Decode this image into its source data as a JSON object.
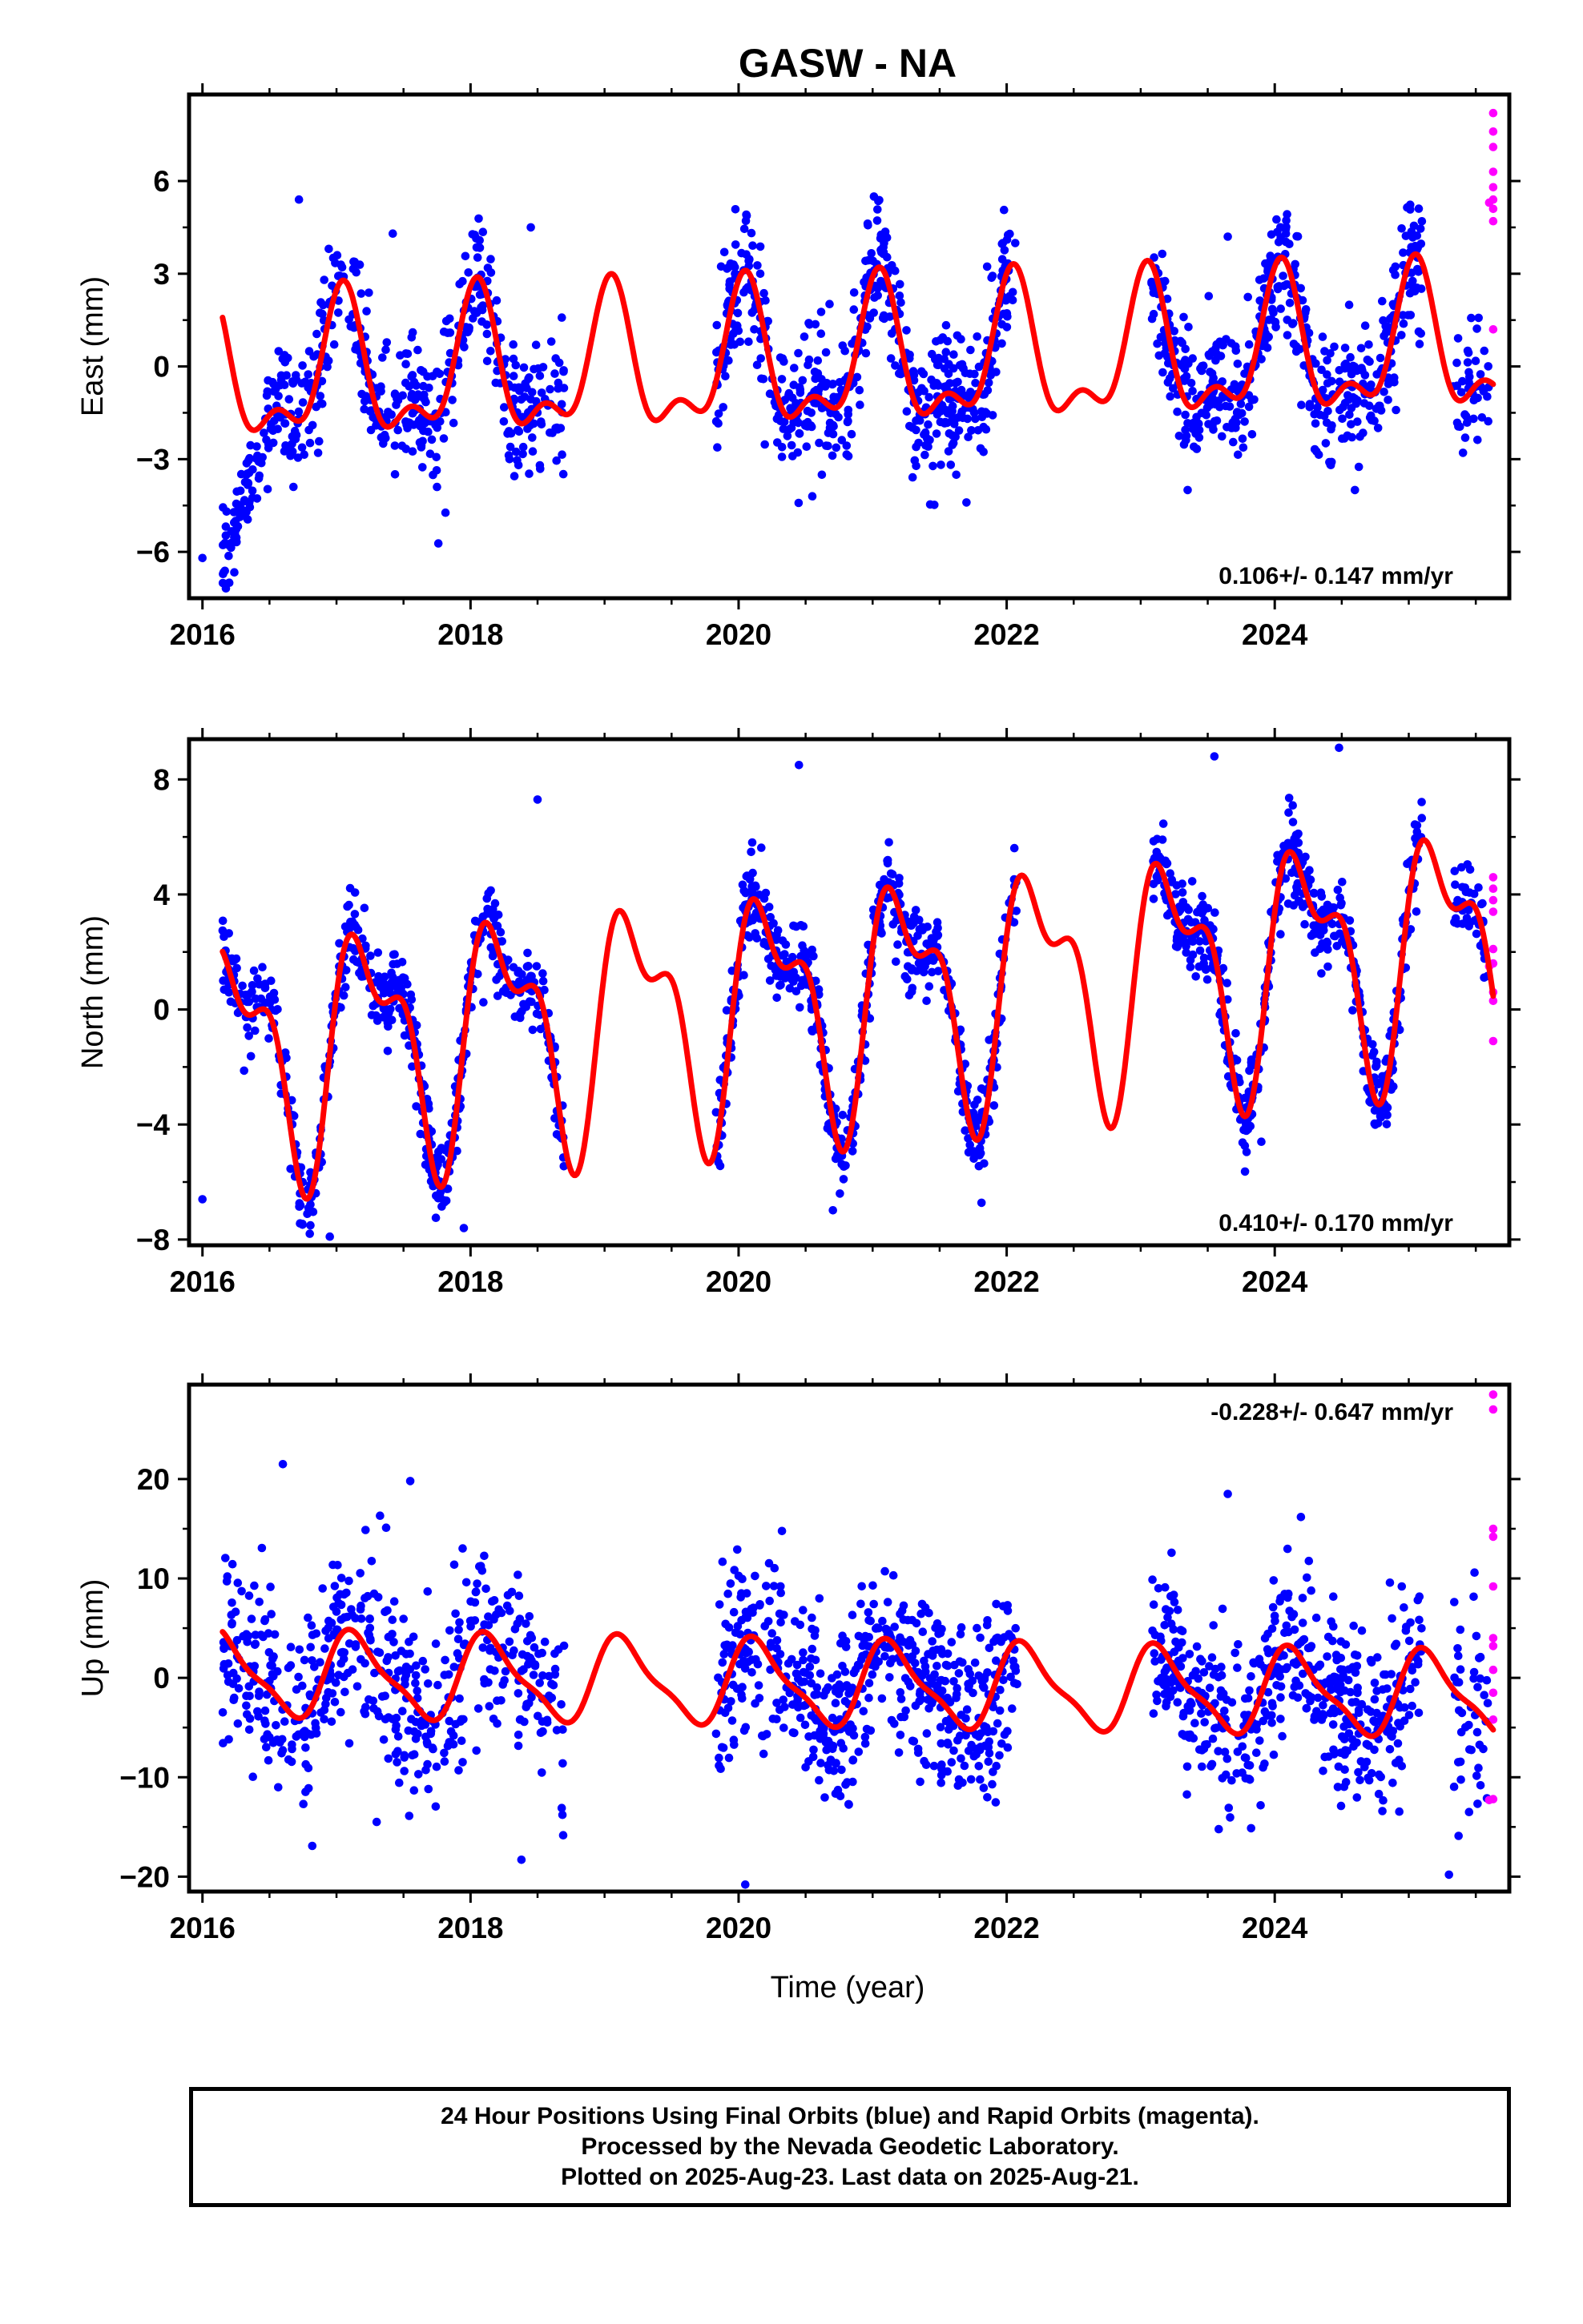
{
  "chart_data": {
    "title": "GASW - NA",
    "xlabel": "Time (year)",
    "x_ticks": [
      2016,
      2018,
      2020,
      2022,
      2024
    ],
    "x_tick_labels": [
      "2016",
      "2018",
      "2020",
      "2022",
      "2024"
    ],
    "xlim": [
      2015.9,
      2025.75
    ],
    "colors": {
      "final_orbits": "#0000ff",
      "rapid_orbits": "#ff00ff",
      "model": "#ff0000"
    },
    "panels": [
      {
        "type": "scatter",
        "ylabel": "East (mm)",
        "ylim": [
          -7.5,
          8.8
        ],
        "y_ticks": [
          -6,
          -3,
          0,
          3,
          6
        ],
        "y_tick_labels": [
          "−6",
          "−3",
          "0",
          "3",
          "6"
        ],
        "rate": "0.106+/- 0.147 mm/yr",
        "rate_position": "bottom-right",
        "noise_sd": 1.05,
        "outliers": [
          [
            2016.72,
            5.4
          ],
          [
            2017.42,
            4.3
          ],
          [
            2018.45,
            4.5
          ],
          [
            2023.65,
            4.2
          ],
          [
            2017.75,
            -3.9
          ],
          [
            2020.55,
            -4.2
          ],
          [
            2021.7,
            -4.4
          ],
          [
            2023.35,
            -4.0
          ],
          [
            2016.2,
            -7.0
          ],
          [
            2016.0,
            -6.2
          ]
        ],
        "segments": [
          {
            "x": [
              2016.15,
              2016.4
            ],
            "y": [
              -6.6,
              -3.2
            ],
            "noise": 0.7,
            "n": 60
          },
          {
            "x": [
              2016.4,
              2016.6
            ],
            "y": [
              -3.2,
              -0.5
            ],
            "noise": 0.8,
            "n": 40
          }
        ],
        "series": [
          {
            "name": "Final Orbits",
            "color": "#0000ff",
            "ranges": [
              [
                2016.6,
                2018.7,
                420
              ],
              [
                2019.83,
                2022.08,
                560
              ],
              [
                2023.08,
                2025.1,
                480
              ],
              [
                2025.33,
                2025.6,
                40
              ]
            ]
          },
          {
            "name": "Rapid Orbits",
            "color": "#ff00ff",
            "points": [
              [
                2025.63,
                8.2
              ],
              [
                2025.63,
                7.6
              ],
              [
                2025.63,
                7.1
              ],
              [
                2025.63,
                6.3
              ],
              [
                2025.63,
                5.8
              ],
              [
                2025.63,
                5.4
              ],
              [
                2025.63,
                5.1
              ],
              [
                2025.63,
                4.7
              ],
              [
                2025.63,
                1.2
              ],
              [
                2025.6,
                5.3
              ]
            ]
          }
        ],
        "model": {
          "name": "Model",
          "color": "#ff0000",
          "offset": 0.0,
          "trend_ref": 2020.0,
          "trend": 0.106,
          "annual": [
            0.55,
            2.0
          ],
          "semiannual": [
            0.65,
            0.8
          ],
          "steps": [
            [
              2016.15,
              -0.8
            ],
            [
              2017.2,
              0.0
            ],
            [
              2019.4,
              -0.7
            ],
            [
              2020.6,
              0.0
            ],
            [
              2022.2,
              -0.9
            ],
            [
              2023.3,
              0.0
            ]
          ]
        }
      },
      {
        "type": "scatter",
        "ylabel": "North (mm)",
        "ylim": [
          -8.2,
          9.4
        ],
        "y_ticks": [
          -8,
          -4,
          0,
          4,
          8
        ],
        "y_tick_labels": [
          "−8",
          "−4",
          "0",
          "4",
          "8"
        ],
        "rate": "0.410+/- 0.170 mm/yr",
        "rate_position": "bottom-right",
        "noise_sd": 0.75,
        "outliers": [
          [
            2018.5,
            7.3
          ],
          [
            2020.45,
            8.5
          ],
          [
            2023.55,
            8.8
          ],
          [
            2024.48,
            9.1
          ],
          [
            2016.95,
            -7.9
          ],
          [
            2017.95,
            -7.6
          ],
          [
            2023.9,
            -4.6
          ],
          [
            2016.0,
            -6.6
          ]
        ],
        "segments": [],
        "series": [
          {
            "name": "Final Orbits",
            "color": "#0000ff",
            "ranges": [
              [
                2016.15,
                2018.7,
                520
              ],
              [
                2019.83,
                2022.08,
                560
              ],
              [
                2023.08,
                2025.1,
                500
              ],
              [
                2025.33,
                2025.6,
                45
              ]
            ]
          },
          {
            "name": "Rapid Orbits",
            "color": "#ff00ff",
            "points": [
              [
                2025.63,
                4.6
              ],
              [
                2025.63,
                4.2
              ],
              [
                2025.63,
                3.8
              ],
              [
                2025.63,
                3.4
              ],
              [
                2025.63,
                2.1
              ],
              [
                2025.63,
                1.6
              ],
              [
                2025.63,
                0.6
              ],
              [
                2025.63,
                0.3
              ],
              [
                2025.63,
                -1.1
              ],
              [
                2025.6,
                1.5
              ]
            ]
          }
        ],
        "model": {
          "name": "Model",
          "color": "#ff0000",
          "offset": 0.0,
          "trend_ref": 2020.0,
          "trend": 0.41,
          "annual": [
            3.6,
            0.25
          ],
          "semiannual": [
            1.05,
            1.5
          ],
          "steps": []
        }
      },
      {
        "type": "scatter",
        "ylabel": "Up (mm)",
        "ylim": [
          -21.5,
          29.5
        ],
        "y_ticks": [
          -20,
          -10,
          0,
          10,
          20
        ],
        "y_tick_labels": [
          "−20",
          "−10",
          "0",
          "10",
          "20"
        ],
        "rate": "-0.228+/- 0.647 mm/yr",
        "rate_position": "top-right",
        "noise_sd": 4.6,
        "outliers": [
          [
            2016.6,
            21.5
          ],
          [
            2017.55,
            19.8
          ],
          [
            2018.38,
            -18.3
          ],
          [
            2020.05,
            -20.8
          ],
          [
            2023.65,
            18.5
          ],
          [
            2025.3,
            -19.8
          ],
          [
            2025.45,
            -13.5
          ],
          [
            2017.3,
            -14.5
          ]
        ],
        "segments": [],
        "series": [
          {
            "name": "Final Orbits",
            "color": "#0000ff",
            "ranges": [
              [
                2016.15,
                2018.7,
                500
              ],
              [
                2019.83,
                2022.08,
                560
              ],
              [
                2023.08,
                2025.1,
                480
              ],
              [
                2025.33,
                2025.6,
                45
              ]
            ]
          },
          {
            "name": "Rapid Orbits",
            "color": "#ff00ff",
            "points": [
              [
                2025.63,
                28.5
              ],
              [
                2025.63,
                27.0
              ],
              [
                2025.63,
                15.0
              ],
              [
                2025.63,
                14.2
              ],
              [
                2025.63,
                9.2
              ],
              [
                2025.63,
                4.0
              ],
              [
                2025.63,
                3.2
              ],
              [
                2025.63,
                0.8
              ],
              [
                2025.63,
                -1.5
              ],
              [
                2025.63,
                -4.2
              ],
              [
                2025.63,
                -12.2
              ],
              [
                2025.6,
                -12.3
              ]
            ]
          }
        ],
        "model": {
          "name": "Model",
          "color": "#ff0000",
          "offset": -0.5,
          "trend_ref": 2020.0,
          "trend": -0.228,
          "annual": [
            3.2,
            2.4
          ],
          "semiannual": [
            0.6,
            1.0
          ],
          "steps": []
        }
      }
    ]
  },
  "footer": {
    "line1": "24 Hour Positions Using Final Orbits (blue) and Rapid Orbits (magenta).",
    "line2": "Processed by the Nevada Geodetic Laboratory.",
    "line3": "Plotted on 2025-Aug-23. Last data on 2025-Aug-21."
  }
}
